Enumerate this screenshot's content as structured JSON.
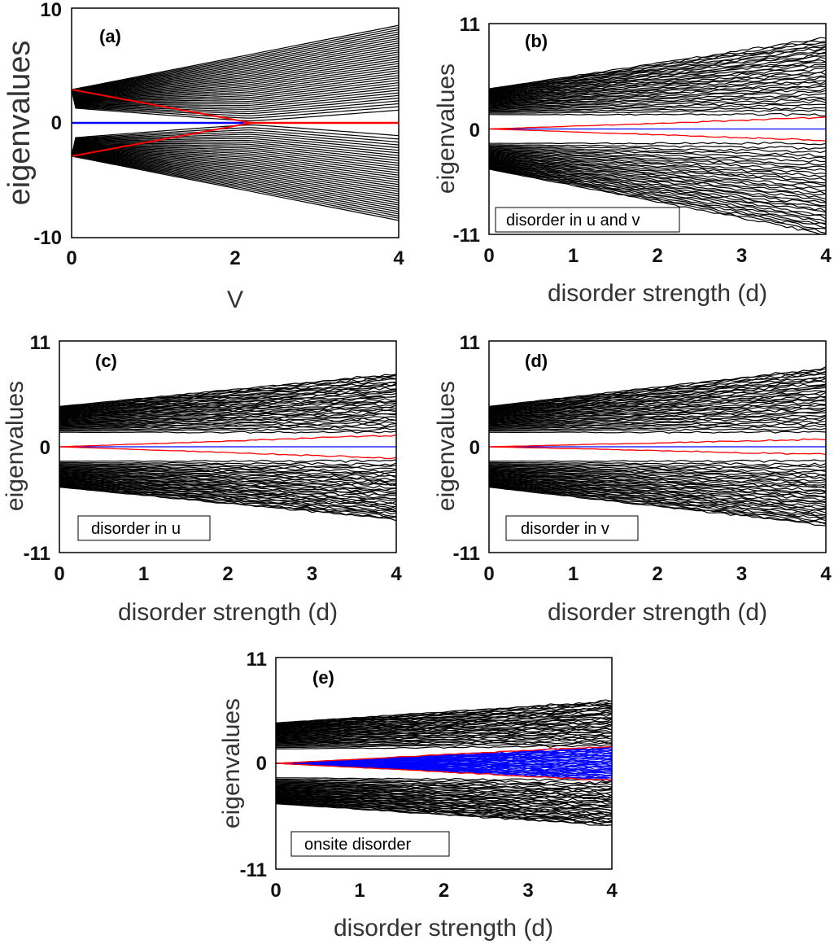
{
  "figure": {
    "panels": [
      {
        "id": "a",
        "panel_label": "(a)",
        "xlabel": "V",
        "ylabel": "eigenvalues",
        "x_ticks": [
          "0",
          "2",
          "4"
        ],
        "y_ticks": [
          "10",
          "0",
          "-10"
        ],
        "legend": ""
      },
      {
        "id": "b",
        "panel_label": "(b)",
        "xlabel": "disorder strength (d)",
        "ylabel": "eigenvalues",
        "x_ticks": [
          "0",
          "1",
          "2",
          "3",
          "4"
        ],
        "y_ticks": [
          "11",
          "0",
          "-11"
        ],
        "legend": "disorder in u and v"
      },
      {
        "id": "c",
        "panel_label": "(c)",
        "xlabel": "disorder strength (d)",
        "ylabel": "eigenvalues",
        "x_ticks": [
          "0",
          "1",
          "2",
          "3",
          "4"
        ],
        "y_ticks": [
          "11",
          "0",
          "-11"
        ],
        "legend": "disorder in u"
      },
      {
        "id": "d",
        "panel_label": "(d)",
        "xlabel": "disorder strength (d)",
        "ylabel": "eigenvalues",
        "x_ticks": [
          "0",
          "1",
          "2",
          "3",
          "4"
        ],
        "y_ticks": [
          "11",
          "0",
          "-11"
        ],
        "legend": "disorder in v"
      },
      {
        "id": "e",
        "panel_label": "(e)",
        "xlabel": "disorder strength (d)",
        "ylabel": "eigenvalues",
        "x_ticks": [
          "0",
          "1",
          "2",
          "3",
          "4"
        ],
        "y_ticks": [
          "11",
          "0",
          "-11"
        ],
        "legend": "onsite disorder"
      }
    ]
  },
  "chart_data": [
    {
      "panel": "a",
      "type": "line",
      "xlim": [
        0,
        4
      ],
      "ylim": [
        -10,
        10
      ],
      "colors": {
        "bulk": "#000000",
        "edge": "#ff0000",
        "zero": "#0000ff"
      },
      "series": [
        {
          "values_desc": "",
          "x": [
            0,
            2,
            4
          ],
          "upper_outer": [
            2.9,
            5.6,
            8.5
          ],
          "upper_inner": [
            2.9,
            0.2,
            3.0
          ]
        },
        {
          "x": [
            0,
            2.2,
            4
          ],
          "edge_upper": [
            2.9,
            0.0,
            0.0
          ],
          "edge_lower": [
            -2.9,
            0.0,
            0.0
          ]
        },
        {
          "x": [
            0,
            4
          ],
          "zero": [
            0,
            0
          ]
        }
      ]
    },
    {
      "panel": "b",
      "type": "line",
      "xlim": [
        0,
        4
      ],
      "ylim": [
        -11,
        11
      ],
      "colors": {
        "bulk": "#000000",
        "edge": "#ff0000",
        "zero": "#0000ff"
      },
      "series": [
        {
          "x": [
            0,
            4
          ],
          "upper_band_max": [
            4.2,
            9.5
          ],
          "upper_band_min": [
            1.5,
            1.5
          ]
        },
        {
          "x": [
            0,
            4
          ],
          "lower_band_max": [
            -1.5,
            -1.5
          ],
          "lower_band_min": [
            -4.2,
            -11.0
          ]
        },
        {
          "x": [
            0,
            4
          ],
          "edge_upper": [
            0,
            1.2
          ],
          "edge_lower": [
            0,
            -1.2
          ]
        },
        {
          "x": [
            0,
            4
          ],
          "zero": [
            0,
            0
          ]
        }
      ]
    },
    {
      "panel": "c",
      "type": "line",
      "xlim": [
        0,
        4
      ],
      "ylim": [
        -11,
        11
      ],
      "colors": {
        "bulk": "#000000",
        "edge": "#ff0000",
        "zero": "#0000ff"
      },
      "series": [
        {
          "x": [
            0,
            4
          ],
          "upper_band_max": [
            4.2,
            7.6
          ],
          "upper_band_min": [
            1.5,
            1.5
          ]
        },
        {
          "x": [
            0,
            4
          ],
          "lower_band_max": [
            -1.5,
            -1.5
          ],
          "lower_band_min": [
            -4.2,
            -7.6
          ]
        },
        {
          "x": [
            0,
            4
          ],
          "edge_upper": [
            0,
            1.2
          ],
          "edge_lower": [
            0,
            -1.2
          ]
        },
        {
          "x": [
            0,
            4
          ],
          "zero": [
            0,
            0
          ]
        }
      ]
    },
    {
      "panel": "d",
      "type": "line",
      "xlim": [
        0,
        4
      ],
      "ylim": [
        -11,
        11
      ],
      "colors": {
        "bulk": "#000000",
        "edge": "#ff0000",
        "zero": "#0000ff"
      },
      "series": [
        {
          "x": [
            0,
            4
          ],
          "upper_band_max": [
            4.2,
            8.2
          ],
          "upper_band_min": [
            1.5,
            1.5
          ]
        },
        {
          "x": [
            0,
            4
          ],
          "lower_band_max": [
            -1.5,
            -1.5
          ],
          "lower_band_min": [
            -4.2,
            -8.2
          ]
        },
        {
          "x": [
            0,
            4
          ],
          "edge_upper": [
            0,
            0.8
          ],
          "edge_lower": [
            0,
            -0.8
          ]
        },
        {
          "x": [
            0,
            4
          ],
          "zero": [
            0,
            0
          ]
        }
      ]
    },
    {
      "panel": "e",
      "type": "line",
      "xlim": [
        0,
        4
      ],
      "ylim": [
        -11,
        11
      ],
      "colors": {
        "bulk": "#000000",
        "edge": "#ff0000",
        "zero": "#0000ff"
      },
      "series": [
        {
          "x": [
            0,
            4
          ],
          "upper_band_max": [
            4.2,
            6.5
          ],
          "upper_band_min": [
            1.5,
            1.8
          ]
        },
        {
          "x": [
            0,
            4
          ],
          "lower_band_max": [
            -1.5,
            -1.8
          ],
          "lower_band_min": [
            -4.2,
            -6.5
          ]
        },
        {
          "x": [
            0,
            4
          ],
          "edge_upper": [
            0,
            1.8
          ],
          "edge_lower": [
            0,
            -1.8
          ]
        },
        {
          "x": [
            0,
            4
          ],
          "zero_band_max": [
            0,
            1.8
          ],
          "zero_band_min": [
            0,
            -1.8
          ]
        }
      ]
    }
  ]
}
